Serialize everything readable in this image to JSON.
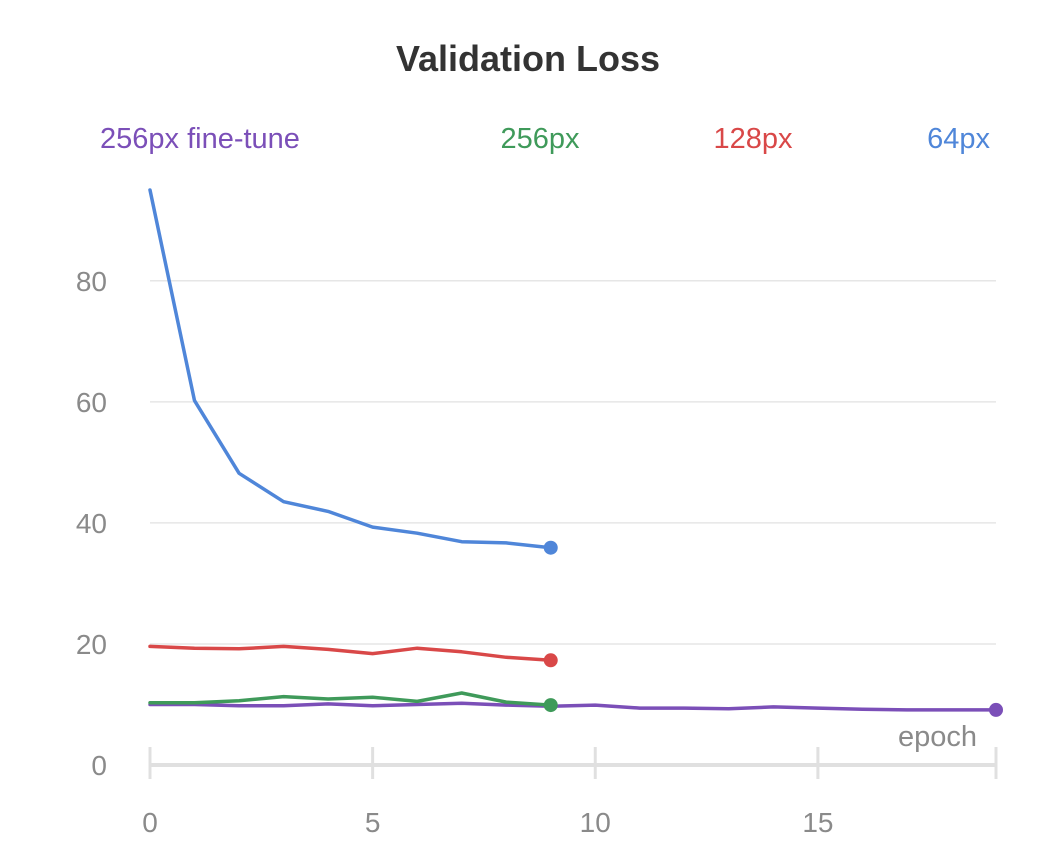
{
  "chart_data": {
    "type": "line",
    "title": "Validation Loss",
    "xlabel": "epoch",
    "ylabel": "",
    "xlim": [
      0,
      19
    ],
    "ylim": [
      0,
      95
    ],
    "xticks": [
      0,
      5,
      10,
      15
    ],
    "yticks": [
      0,
      20,
      40,
      60,
      80
    ],
    "grid": true,
    "legend_placement": "top",
    "series": [
      {
        "name": "256px fine-tune",
        "color": "#7b4fb8",
        "x": [
          0,
          1,
          2,
          3,
          4,
          5,
          6,
          7,
          8,
          9,
          10,
          11,
          12,
          13,
          14,
          15,
          16,
          17,
          18,
          19
        ],
        "values": [
          10.0,
          10.0,
          9.8,
          9.8,
          10.1,
          9.8,
          10.0,
          10.2,
          9.9,
          9.7,
          9.9,
          9.4,
          9.4,
          9.3,
          9.6,
          9.4,
          9.2,
          9.1,
          9.1,
          9.1
        ]
      },
      {
        "name": "256px",
        "color": "#3f9a5a",
        "x": [
          0,
          1,
          2,
          3,
          4,
          5,
          6,
          7,
          8,
          9
        ],
        "values": [
          10.3,
          10.3,
          10.6,
          11.3,
          10.9,
          11.2,
          10.5,
          11.9,
          10.4,
          9.9
        ]
      },
      {
        "name": "128px",
        "color": "#d94848",
        "x": [
          0,
          1,
          2,
          3,
          4,
          5,
          6,
          7,
          8,
          9
        ],
        "values": [
          19.6,
          19.3,
          19.2,
          19.6,
          19.1,
          18.4,
          19.3,
          18.7,
          17.8,
          17.3
        ]
      },
      {
        "name": "64px",
        "color": "#4f86d9",
        "x": [
          0,
          1,
          2,
          3,
          4,
          5,
          6,
          7,
          8,
          9
        ],
        "values": [
          95.0,
          60.2,
          48.2,
          43.5,
          41.9,
          39.3,
          38.3,
          36.9,
          36.7,
          35.9
        ]
      }
    ]
  }
}
